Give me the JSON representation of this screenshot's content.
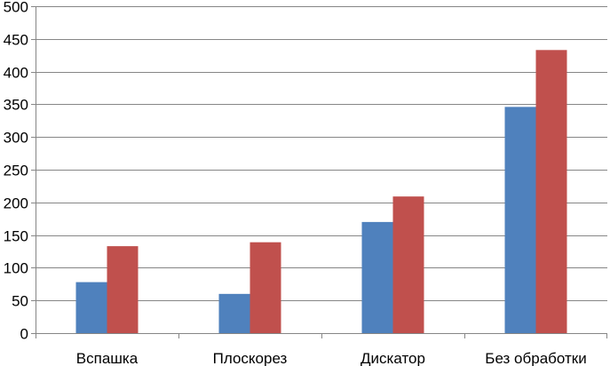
{
  "chart_data": {
    "type": "bar",
    "categories": [
      "Вспашка",
      "Плоскорез",
      "Дискатор",
      "Без обработки"
    ],
    "series": [
      {
        "values": [
          78,
          60,
          170,
          346
        ],
        "color": "#4f81bd"
      },
      {
        "values": [
          133,
          139,
          209,
          433
        ],
        "color": "#c0504d"
      }
    ],
    "ylim": [
      0,
      500
    ],
    "yticks": [
      0,
      50,
      100,
      150,
      200,
      250,
      300,
      350,
      400,
      450,
      500
    ],
    "grid": true,
    "legend": "none",
    "title": "",
    "xlabel": "",
    "ylabel": ""
  }
}
